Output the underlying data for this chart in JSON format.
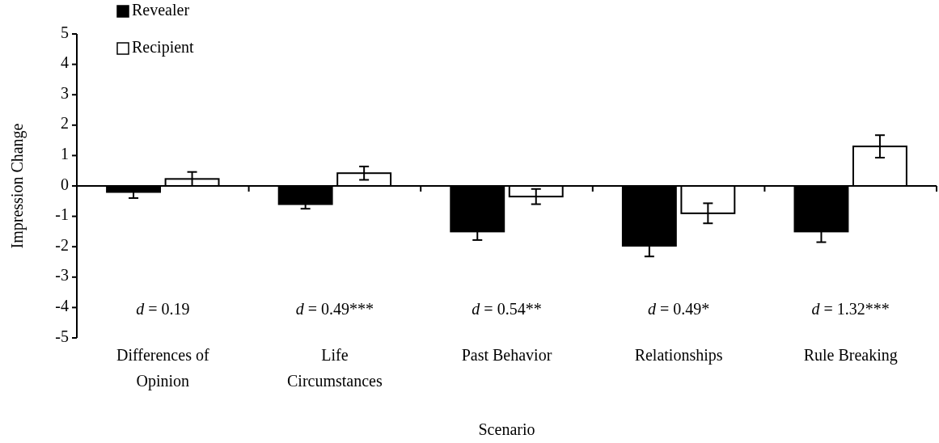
{
  "chart_data": {
    "type": "bar",
    "xlabel": "Scenario",
    "ylabel": "Impression Change",
    "categories": [
      "Differences of Opinion",
      "Life Circumstances",
      "Past Behavior",
      "Relationships",
      "Rule Breaking"
    ],
    "series": [
      {
        "name": "Revealer",
        "color": "#000000",
        "values": [
          -0.2,
          -0.6,
          -1.5,
          -1.97,
          -1.5
        ],
        "errors": [
          0.2,
          0.15,
          0.28,
          0.35,
          0.35
        ]
      },
      {
        "name": "Recipient",
        "color": "#ffffff",
        "values": [
          0.23,
          0.42,
          -0.35,
          -0.9,
          1.3
        ],
        "errors": [
          0.23,
          0.22,
          0.25,
          0.33,
          0.37
        ]
      }
    ],
    "ylim": [
      -5,
      5
    ],
    "yticks": [
      -5,
      -4,
      -3,
      -2,
      -1,
      0,
      1,
      2,
      3,
      4,
      5
    ],
    "legend": "top left",
    "annotations": [
      "d = 0.19",
      "d = 0.49***",
      "d = 0.54**",
      "d = 0.49*",
      "d = 1.32***"
    ]
  }
}
